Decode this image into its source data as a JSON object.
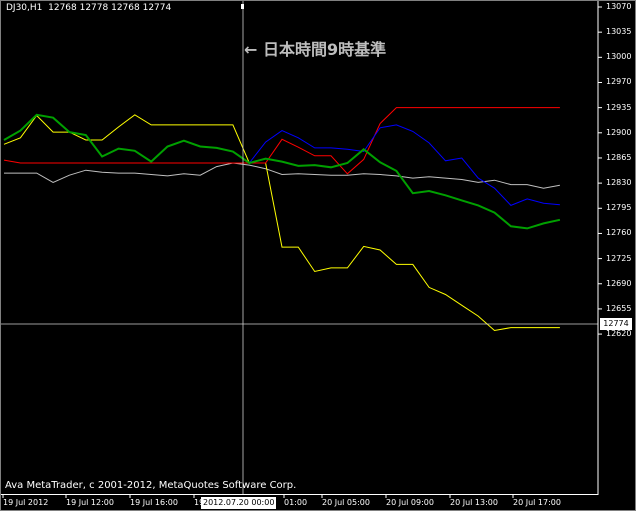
{
  "window": {
    "ohlc_header": "DJ30,H1  12768 12778 12768 12774"
  },
  "annotation": {
    "note": "←  日本時間9時基準"
  },
  "footer": {
    "copyright": "Ava MetaTrader, c 2001-2012, MetaQuotes Software Corp."
  },
  "crosshair": {
    "price_label": "12774",
    "time_label": "2012.07.20 00:00"
  },
  "colors": {
    "background": "#000000",
    "frame": "#ffffff",
    "white_line": "#c0c0c0",
    "yellow_line": "#ffff00",
    "red_line": "#ff0000",
    "blue_line": "#0000ff",
    "green_line": "#00a000"
  },
  "chart_data": {
    "type": "line",
    "symbol": "DJ30",
    "timeframe": "H1",
    "y_ticks": [
      "13070",
      "13035",
      "13000",
      "12970",
      "12935",
      "12900",
      "12865",
      "12830",
      "12795",
      "12760",
      "12725",
      "12690",
      "12655",
      "12620"
    ],
    "x_ticks": [
      "19 Jul 2012",
      "19 Jul 12:00",
      "19 Jul 16:00",
      "19",
      "01:00",
      "20 Jul 05:00",
      "20 Jul 09:00",
      "20 Jul 13:00",
      "20 Jul 17:00"
    ],
    "ylim": [
      12610,
      13075
    ],
    "series": [
      {
        "color_key": "white_line",
        "x": [
          0,
          1,
          2,
          3,
          4,
          5,
          6,
          7,
          8,
          9,
          10,
          11,
          12,
          13,
          14,
          15,
          16,
          17,
          18,
          19,
          20,
          21,
          22,
          23,
          24,
          25,
          26,
          27,
          28,
          29,
          30,
          31,
          32,
          33,
          34
        ],
        "values": [
          12839,
          12839,
          12839,
          12826,
          12836,
          12843,
          12840,
          12839,
          12839,
          12837,
          12835,
          12838,
          12836,
          12848,
          12853,
          12850,
          12845,
          12837,
          12838,
          12837,
          12836,
          12836,
          12838,
          12837,
          12835,
          12832,
          12834,
          12832,
          12830,
          12826,
          12829,
          12823,
          12823,
          12818,
          12822
        ]
      },
      {
        "color_key": "yellow_line",
        "x": [
          0,
          1,
          2,
          3,
          4,
          5,
          6,
          7,
          8,
          9,
          10,
          11,
          12,
          13,
          14,
          15,
          16,
          17,
          18,
          19,
          20,
          21,
          22,
          23,
          24,
          25,
          26,
          27,
          28,
          29,
          30,
          31,
          32,
          33,
          34
        ],
        "values": [
          12879,
          12888,
          12919,
          12896,
          12896,
          12885,
          12885,
          12903,
          12920,
          12906,
          12906,
          12906,
          12906,
          12906,
          12906,
          12853,
          12853,
          12736,
          12736,
          12702,
          12707,
          12707,
          12737,
          12732,
          12712,
          12712,
          12680,
          12670,
          12655,
          12640,
          12620,
          12624,
          12624,
          12624,
          12624
        ]
      },
      {
        "color_key": "red_line",
        "x": [
          0,
          1,
          2,
          3,
          4,
          5,
          6,
          7,
          8,
          9,
          10,
          11,
          12,
          13,
          14,
          15,
          16,
          17,
          18,
          19,
          20,
          21,
          22,
          23,
          24,
          25,
          26,
          27,
          28,
          29,
          30,
          31,
          32,
          33,
          34
        ],
        "values": [
          12857,
          12853,
          12853,
          12853,
          12853,
          12853,
          12853,
          12853,
          12853,
          12853,
          12853,
          12853,
          12853,
          12853,
          12853,
          12853,
          12853,
          12886,
          12875,
          12863,
          12863,
          12838,
          12858,
          12908,
          12930,
          12930,
          12930,
          12930,
          12930,
          12930,
          12930,
          12930,
          12930,
          12930,
          12930
        ]
      },
      {
        "color_key": "blue_line",
        "x": [
          15,
          16,
          17,
          18,
          19,
          20,
          21,
          22,
          23,
          24,
          25,
          26,
          27,
          28,
          29,
          30,
          31,
          32,
          33,
          34
        ],
        "values": [
          12853,
          12882,
          12898,
          12888,
          12874,
          12874,
          12872,
          12869,
          12902,
          12906,
          12897,
          12881,
          12856,
          12860,
          12832,
          12818,
          12794,
          12803,
          12797,
          12795
        ]
      },
      {
        "color_key": "green_line",
        "x": [
          0,
          1,
          2,
          3,
          4,
          5,
          6,
          7,
          8,
          9,
          10,
          11,
          12,
          13,
          14,
          15,
          16,
          17,
          18,
          19,
          20,
          21,
          22,
          23,
          24,
          25,
          26,
          27,
          28,
          29,
          30,
          31,
          32,
          33,
          34
        ],
        "values": [
          12885,
          12898,
          12920,
          12916,
          12896,
          12892,
          12862,
          12873,
          12870,
          12855,
          12876,
          12884,
          12876,
          12874,
          12869,
          12853,
          12859,
          12855,
          12849,
          12850,
          12847,
          12853,
          12872,
          12854,
          12842,
          12811,
          12814,
          12808,
          12801,
          12794,
          12784,
          12765,
          12762,
          12769,
          12774
        ]
      }
    ]
  }
}
